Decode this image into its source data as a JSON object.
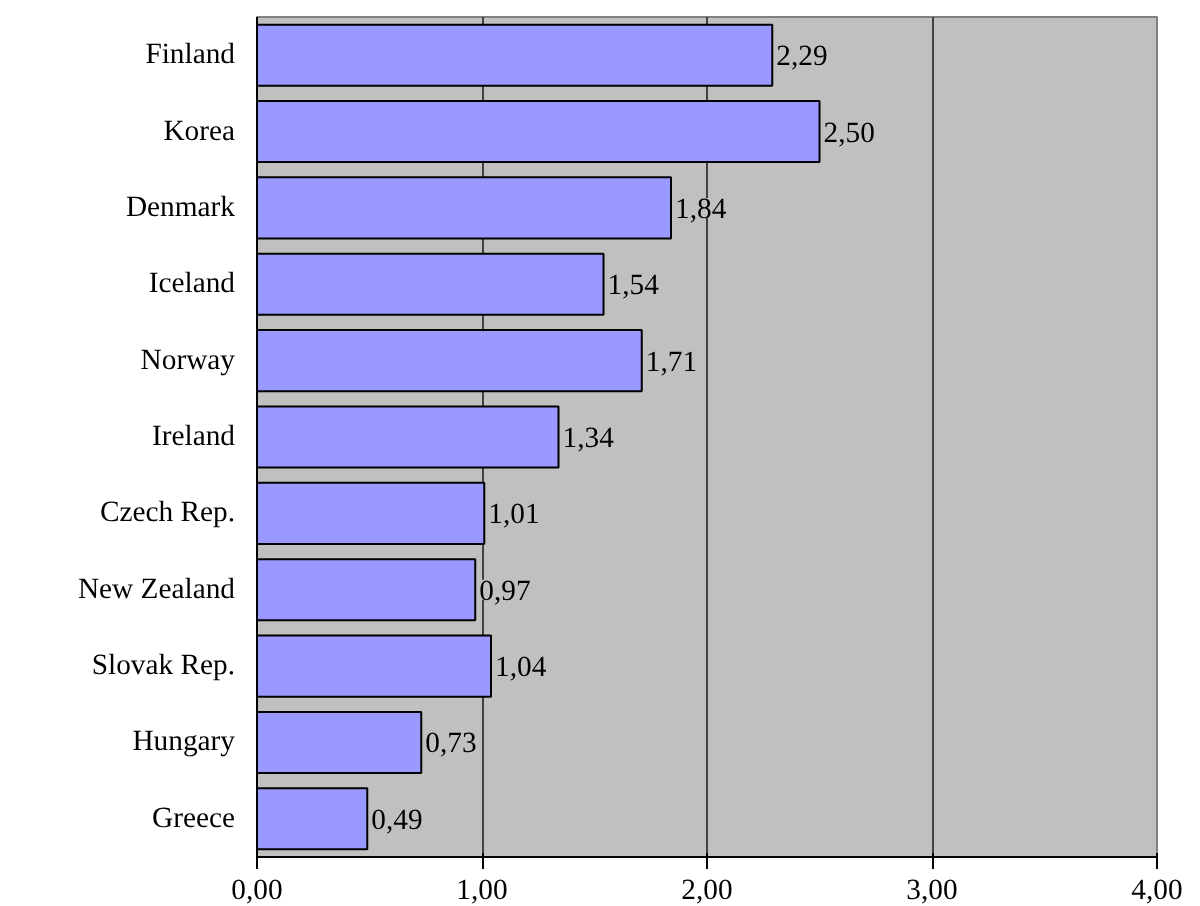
{
  "chart_data": {
    "type": "bar",
    "orientation": "horizontal",
    "categories": [
      "Finland",
      "Korea",
      "Denmark",
      "Iceland",
      "Norway",
      "Ireland",
      "Czech Rep.",
      "New Zealand",
      "Slovak Rep.",
      "Hungary",
      "Greece"
    ],
    "values": [
      2.29,
      2.5,
      1.84,
      1.54,
      1.71,
      1.34,
      1.01,
      0.97,
      1.04,
      0.73,
      0.49
    ],
    "value_labels": [
      "2,29",
      "2,50",
      "1,84",
      "1,54",
      "1,71",
      "1,34",
      "1,01",
      "0,97",
      "1,04",
      "0,73",
      "0,49"
    ],
    "color": "#9999ff",
    "xlim": [
      0,
      4
    ],
    "xticks": [
      {
        "value": 0,
        "label": "0,00"
      },
      {
        "value": 1,
        "label": "1,00"
      },
      {
        "value": 2,
        "label": "2,00"
      },
      {
        "value": 3,
        "label": "3,00"
      },
      {
        "value": 4,
        "label": "4,00"
      }
    ],
    "grid": "x"
  }
}
